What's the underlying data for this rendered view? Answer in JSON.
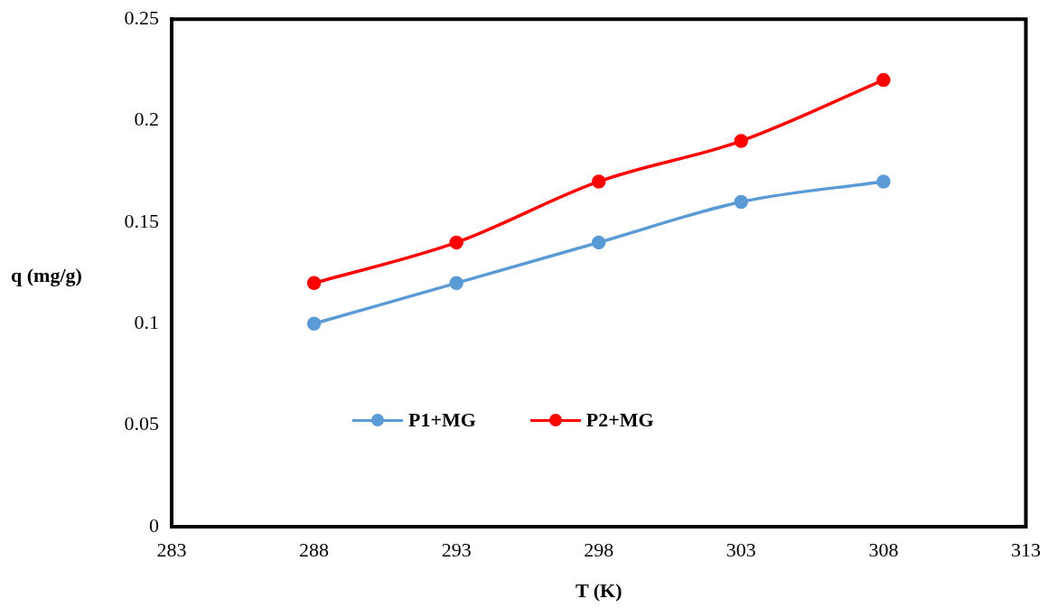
{
  "chart_data": {
    "type": "line",
    "xlabel": "T (K)",
    "ylabel": "q (mg/g)",
    "x": [
      288,
      293,
      298,
      303,
      308
    ],
    "series": [
      {
        "name": "P1+MG",
        "color": "#5b9bd5",
        "values": [
          0.1,
          0.12,
          0.14,
          0.16,
          0.17
        ]
      },
      {
        "name": "P2+MG",
        "color": "#ff0000",
        "values": [
          0.12,
          0.14,
          0.17,
          0.19,
          0.22
        ]
      }
    ],
    "xlim": [
      283,
      313
    ],
    "xticks": [
      283,
      288,
      293,
      298,
      303,
      308,
      313
    ],
    "ylim": [
      0,
      0.25
    ],
    "yticks": [
      0,
      0.05,
      0.1,
      0.15,
      0.2,
      0.25
    ],
    "marker": "circle",
    "line_style": "solid",
    "legend": "bottom left"
  }
}
